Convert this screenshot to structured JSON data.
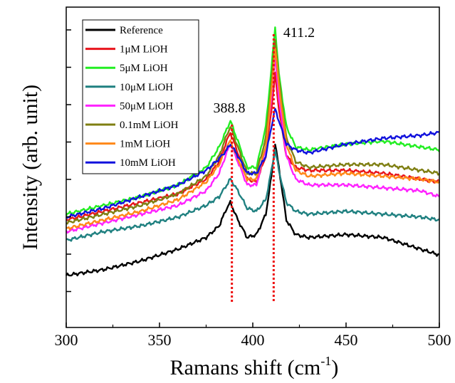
{
  "chart_data": {
    "type": "line",
    "xlabel": "Ramans shift (cm",
    "xlabel_superscript": "-1",
    "xlabel_suffix": ")",
    "ylabel": "Intensity (arb. unit)",
    "xlim": [
      300,
      500
    ],
    "ylim": [
      0,
      100
    ],
    "x_ticks": [
      300,
      350,
      400,
      450,
      500
    ],
    "grid": false,
    "legend_position": "top-left",
    "annotations": [
      {
        "text": "388.8",
        "x": 388.8
      },
      {
        "text": "411.2",
        "x": 411.2
      }
    ],
    "series": [
      {
        "name": "Reference",
        "color": "#000000",
        "x": [
          300,
          320,
          340,
          360,
          375,
          382,
          386,
          388,
          392,
          397,
          402,
          407,
          410,
          412,
          414,
          418,
          423,
          430,
          450,
          470,
          490,
          500
        ],
        "y": [
          11,
          13,
          16,
          20,
          24,
          28,
          34,
          36,
          30,
          24,
          25,
          32,
          45,
          56,
          48,
          30,
          25,
          24,
          25,
          24,
          20,
          18
        ]
      },
      {
        "name": "1μM LiOH",
        "color": "#e8131b",
        "x": [
          300,
          320,
          340,
          360,
          375,
          382,
          386,
          388,
          392,
          397,
          402,
          407,
          410,
          412,
          414,
          418,
          423,
          430,
          450,
          470,
          490,
          500
        ],
        "y": [
          30,
          33,
          36,
          39,
          44,
          50,
          57,
          60,
          53,
          44,
          43,
          52,
          68,
          80,
          68,
          52,
          48,
          47,
          47,
          46,
          44,
          43
        ]
      },
      {
        "name": "5μM LiOH",
        "color": "#22ee22",
        "x": [
          300,
          320,
          340,
          360,
          375,
          382,
          386,
          388,
          392,
          397,
          402,
          407,
          410,
          412,
          414,
          418,
          423,
          430,
          450,
          470,
          490,
          500
        ],
        "y": [
          32,
          35,
          38,
          42,
          48,
          55,
          61,
          64,
          57,
          48,
          48,
          62,
          82,
          96,
          80,
          62,
          55,
          54,
          56,
          57,
          55,
          54
        ]
      },
      {
        "name": "10μM LiOH",
        "color": "#1f8080",
        "x": [
          300,
          320,
          340,
          360,
          375,
          382,
          386,
          388,
          392,
          397,
          402,
          407,
          410,
          412,
          414,
          418,
          423,
          430,
          450,
          470,
          490,
          500
        ],
        "y": [
          23,
          26,
          28,
          31,
          35,
          38,
          42,
          44,
          40,
          34,
          33,
          37,
          47,
          54,
          47,
          36,
          33,
          32,
          33,
          32,
          31,
          30
        ]
      },
      {
        "name": "50μM LiOH",
        "color": "#ff22ff",
        "x": [
          300,
          320,
          340,
          360,
          375,
          382,
          386,
          388,
          392,
          397,
          402,
          407,
          410,
          412,
          414,
          418,
          423,
          430,
          450,
          470,
          490,
          500
        ],
        "y": [
          26,
          29,
          32,
          35,
          40,
          46,
          53,
          56,
          50,
          42,
          42,
          55,
          72,
          86,
          72,
          52,
          44,
          42,
          42,
          41,
          40,
          38
        ]
      },
      {
        "name": "0.1mM LiOH",
        "color": "#7f7f12",
        "x": [
          300,
          320,
          340,
          360,
          375,
          382,
          386,
          388,
          392,
          397,
          402,
          407,
          410,
          412,
          414,
          418,
          423,
          430,
          450,
          470,
          490,
          500
        ],
        "y": [
          29,
          32,
          35,
          39,
          45,
          52,
          59,
          62,
          55,
          46,
          46,
          58,
          77,
          92,
          78,
          58,
          50,
          48,
          49,
          49,
          47,
          46
        ]
      },
      {
        "name": "1mM LiOH",
        "color": "#ff8818",
        "x": [
          300,
          320,
          340,
          360,
          375,
          382,
          386,
          388,
          392,
          397,
          402,
          407,
          410,
          412,
          414,
          418,
          423,
          430,
          450,
          470,
          490,
          500
        ],
        "y": [
          27,
          30,
          33,
          37,
          43,
          49,
          55,
          57,
          51,
          44,
          44,
          55,
          74,
          89,
          76,
          56,
          47,
          45,
          46,
          45,
          44,
          43
        ]
      },
      {
        "name": "10mM LiOH",
        "color": "#1111dd",
        "x": [
          300,
          320,
          340,
          360,
          375,
          382,
          386,
          388,
          392,
          397,
          402,
          407,
          410,
          412,
          414,
          418,
          423,
          430,
          450,
          470,
          490,
          500
        ],
        "y": [
          31,
          34,
          38,
          42,
          47,
          51,
          54,
          56,
          52,
          46,
          46,
          52,
          62,
          68,
          64,
          56,
          54,
          53,
          56,
          58,
          59,
          60
        ]
      }
    ]
  }
}
